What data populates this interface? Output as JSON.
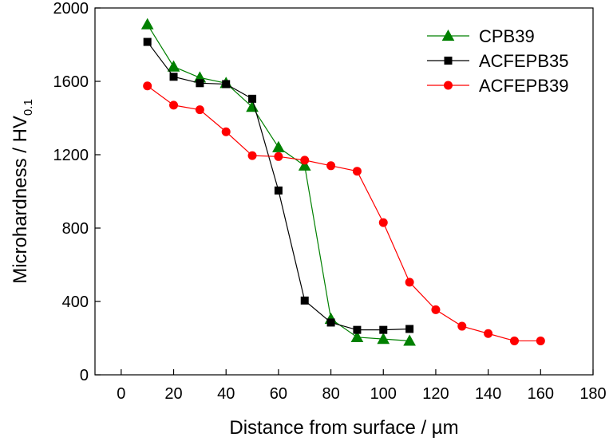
{
  "chart_data": {
    "type": "line",
    "xlabel": "Distance from surface / µm",
    "ylabel": "Microhardness / HV",
    "ylabel_subscript": "0.1",
    "xlim": [
      -10,
      180
    ],
    "ylim": [
      0,
      2000
    ],
    "xticks": [
      0,
      20,
      40,
      60,
      80,
      100,
      120,
      140,
      160,
      180
    ],
    "yticks": [
      0,
      400,
      800,
      1200,
      1600,
      2000
    ],
    "grid": false,
    "legend_position": "top-right",
    "series": [
      {
        "name": "CPB39",
        "color": "#008000",
        "marker": "triangle",
        "x": [
          10,
          20,
          30,
          40,
          50,
          60,
          70,
          80,
          90,
          100,
          110
        ],
        "y": [
          1910,
          1680,
          1620,
          1590,
          1460,
          1240,
          1140,
          305,
          205,
          195,
          185
        ]
      },
      {
        "name": "ACFEPB35",
        "color": "#000000",
        "marker": "square",
        "x": [
          10,
          20,
          30,
          40,
          50,
          60,
          70,
          80,
          90,
          100,
          110
        ],
        "y": [
          1815,
          1625,
          1590,
          1585,
          1505,
          1005,
          405,
          285,
          245,
          245,
          250
        ]
      },
      {
        "name": "ACFEPB39",
        "color": "#ff0000",
        "marker": "circle",
        "x": [
          10,
          20,
          30,
          40,
          50,
          60,
          70,
          80,
          90,
          100,
          110,
          120,
          130,
          140,
          150,
          160
        ],
        "y": [
          1575,
          1470,
          1445,
          1325,
          1195,
          1190,
          1170,
          1140,
          1110,
          830,
          505,
          355,
          265,
          225,
          185,
          185
        ]
      }
    ]
  }
}
